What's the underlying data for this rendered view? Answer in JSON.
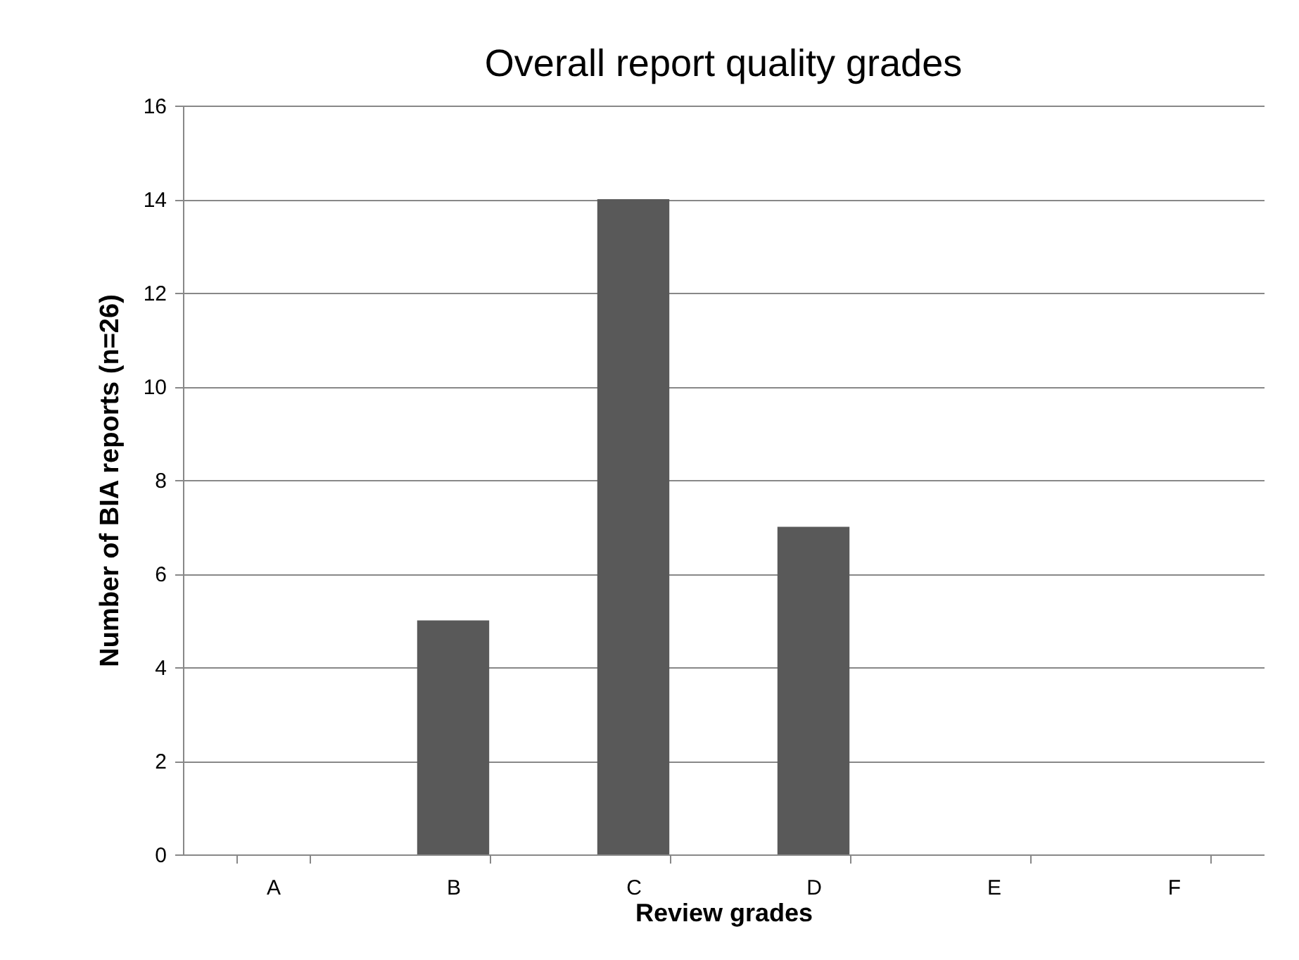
{
  "chart_data": {
    "type": "bar",
    "title": "Overall report quality grades",
    "xlabel": "Review grades",
    "ylabel": "Number of BIA reports (n=26)",
    "categories": [
      "A",
      "B",
      "C",
      "D",
      "E",
      "F"
    ],
    "values": [
      0,
      5,
      14,
      7,
      0,
      0
    ],
    "color": "#595959",
    "ylim": [
      0,
      16
    ],
    "yticks": [
      0,
      2,
      4,
      6,
      8,
      10,
      12,
      14,
      16
    ],
    "grid": "y"
  }
}
